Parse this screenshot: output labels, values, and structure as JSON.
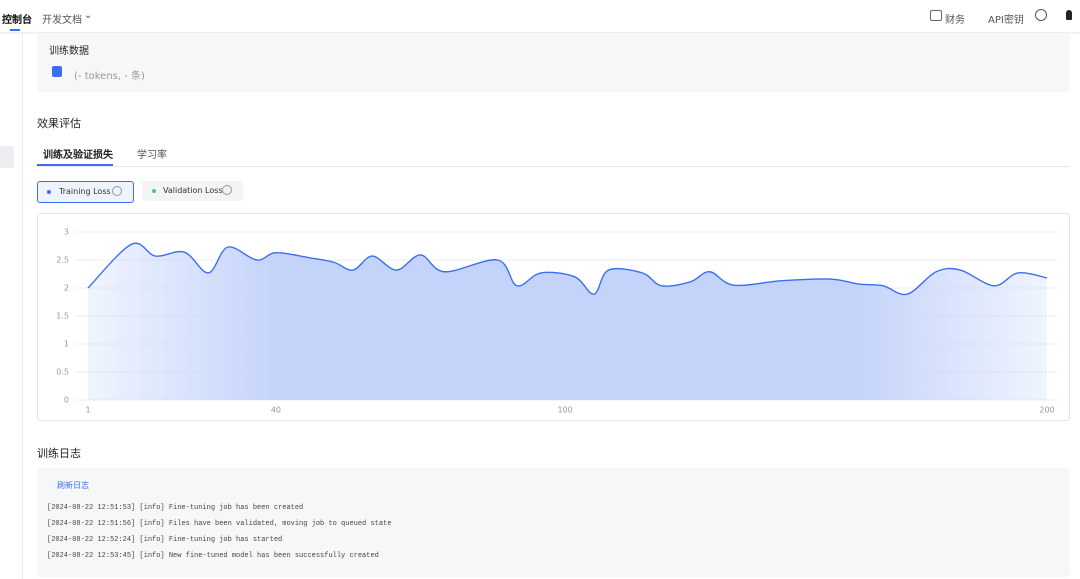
{
  "nav": {
    "console": "控制台",
    "docs": "开发文档",
    "finance": "财务",
    "api_key": "API密钥"
  },
  "training_data": {
    "title": "训练数据",
    "summary": "(- tokens, - 条)"
  },
  "evaluation": {
    "title": "效果评估",
    "tabs": [
      "训练及验证损失",
      "学习率"
    ],
    "legend": [
      "Training Loss",
      "Validation Loss"
    ]
  },
  "loss_chart": {
    "type": "area",
    "x": [
      1,
      10,
      15,
      21,
      26,
      30,
      36,
      40,
      47,
      52,
      56,
      60,
      65,
      70,
      75,
      86,
      90,
      95,
      102,
      106,
      109,
      116,
      120,
      126,
      130,
      135,
      145,
      155,
      161,
      166,
      171,
      177,
      182,
      189,
      194,
      200
    ],
    "values": [
      2.0,
      2.78,
      2.57,
      2.64,
      2.27,
      2.73,
      2.5,
      2.63,
      2.54,
      2.46,
      2.32,
      2.57,
      2.32,
      2.59,
      2.29,
      2.5,
      2.04,
      2.27,
      2.2,
      1.89,
      2.32,
      2.27,
      2.04,
      2.11,
      2.29,
      2.05,
      2.13,
      2.16,
      2.07,
      2.04,
      1.89,
      2.29,
      2.32,
      2.04,
      2.27,
      2.18
    ],
    "color": "#3b6ef0",
    "xlim": [
      1,
      200
    ],
    "ylim": [
      0,
      3
    ],
    "xticks": [
      1,
      40,
      100,
      200
    ],
    "yticks": [
      0,
      0.5,
      1,
      1.5,
      2,
      2.5,
      3
    ],
    "grid": true
  },
  "logs": {
    "title": "训练日志",
    "refresh": "刷新日志",
    "lines": [
      "[2024-08-22 12:51:53] [info] Fine-tuning job has been created",
      "[2024-08-22 12:51:56] [info] Files have been validated, moving job to queued state",
      "[2024-08-22 12:52:24] [info] Fine-tuning job has started",
      "[2024-08-22 12:53:45] [info] New fine-tuned model has been successfully created"
    ]
  }
}
